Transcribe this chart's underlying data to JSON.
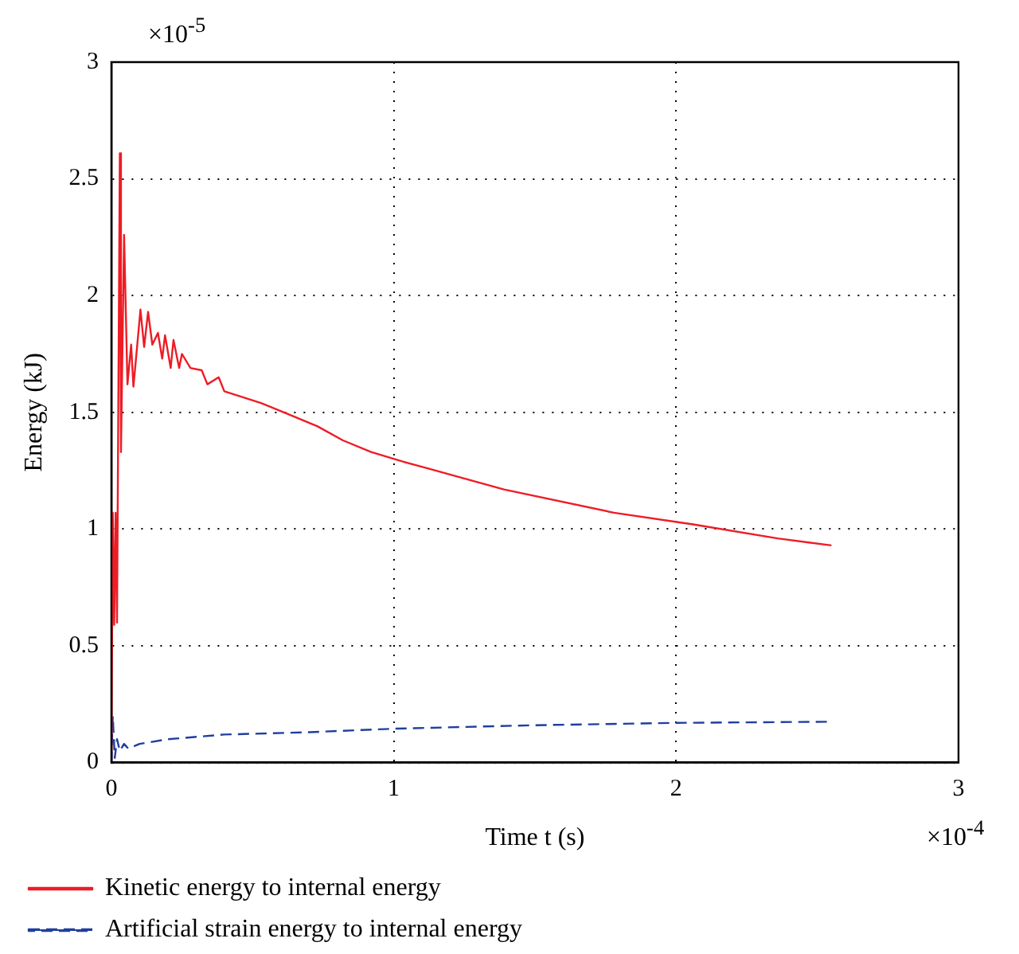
{
  "chart_data": {
    "type": "line",
    "xlabel": "Time t (s)",
    "ylabel": "Energy (kJ)",
    "xlim": [
      0,
      3
    ],
    "ylim": [
      0,
      3
    ],
    "xticks": [
      0,
      1,
      2,
      3
    ],
    "yticks": [
      0,
      0.5,
      1,
      1.5,
      2,
      2.5,
      3
    ],
    "grid": true,
    "legend": "bottom",
    "marker": "none",
    "annotations": [
      "×10$^{-5}$",
      "×10$^{-4}$"
    ],
    "series": [
      {
        "name": "Kinetic energy to internal energy",
        "color": "#ee1c25",
        "line_style": "solid",
        "x": [
          0,
          0.005,
          0.01,
          0.015,
          0.02,
          0.03,
          0.034,
          0.045,
          0.057,
          0.07,
          0.078,
          0.088,
          0.103,
          0.116,
          0.13,
          0.145,
          0.165,
          0.18,
          0.19,
          0.21,
          0.22,
          0.24,
          0.25,
          0.28,
          0.32,
          0.34,
          0.38,
          0.4,
          0.53,
          0.63,
          0.73,
          0.82,
          0.92,
          1.03,
          1.12,
          1.39,
          1.78,
          2.06,
          2.36,
          2.55
        ],
        "values": [
          0,
          1.07,
          0.59,
          1.07,
          0.6,
          2.61,
          1.33,
          2.26,
          1.62,
          1.79,
          1.61,
          1.74,
          1.94,
          1.78,
          1.93,
          1.79,
          1.84,
          1.73,
          1.83,
          1.69,
          1.81,
          1.69,
          1.75,
          1.69,
          1.68,
          1.62,
          1.65,
          1.59,
          1.54,
          1.49,
          1.44,
          1.38,
          1.33,
          1.29,
          1.26,
          1.17,
          1.07,
          1.02,
          0.96,
          0.93
        ]
      },
      {
        "name": "Artificial strain energy to internal energy",
        "color": "#1f3f9f",
        "line_style": "dashed",
        "x": [
          0,
          0.005,
          0.012,
          0.02,
          0.03,
          0.045,
          0.06,
          0.1,
          0.2,
          0.4,
          0.7,
          1.0,
          1.5,
          2.0,
          2.55
        ],
        "values": [
          0,
          0.2,
          0.02,
          0.1,
          0.05,
          0.08,
          0.06,
          0.08,
          0.1,
          0.12,
          0.13,
          0.145,
          0.16,
          0.17,
          0.175
        ]
      }
    ]
  }
}
